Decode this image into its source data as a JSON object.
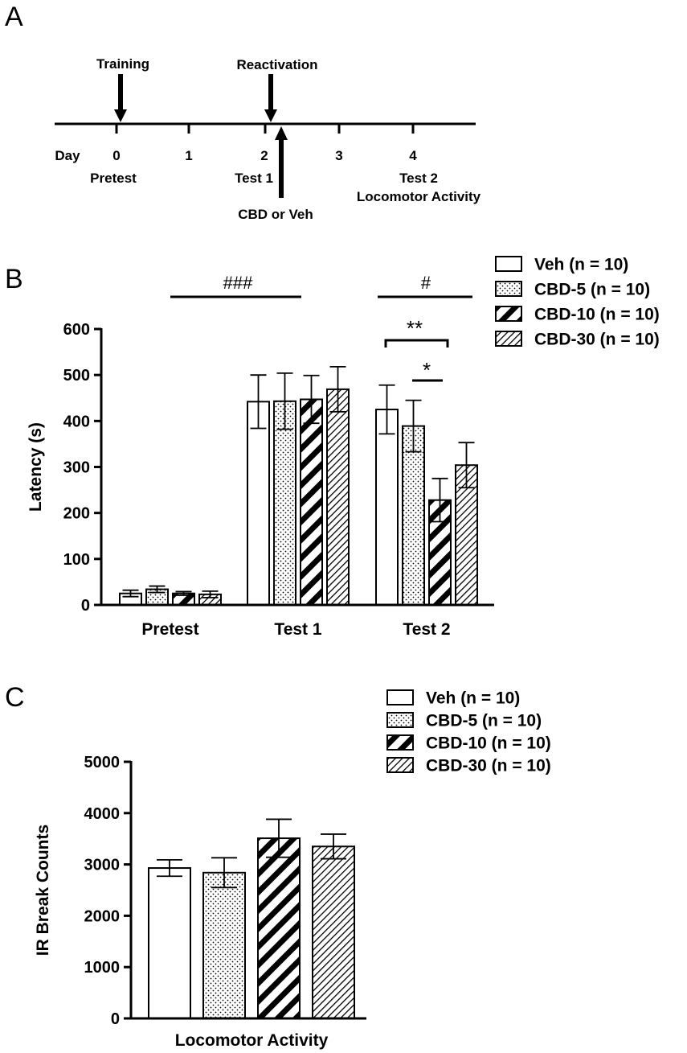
{
  "panels": {
    "a": "A",
    "b": "B",
    "c": "C"
  },
  "timeline": {
    "day_label": "Day",
    "days": [
      "0",
      "1",
      "2",
      "3",
      "4"
    ],
    "events_above": [
      "Training",
      "Reactivation"
    ],
    "labels_below": [
      "Pretest",
      "Test 1",
      "Test 2",
      "Locomotor Activity"
    ],
    "injection_label": "CBD or Veh"
  },
  "chart_data": [
    {
      "type": "bar",
      "panel": "B",
      "categories": [
        "Pretest",
        "Test 1",
        "Test 2"
      ],
      "series": [
        {
          "name": "Veh (n = 10)",
          "values": [
            25,
            442,
            425
          ],
          "errors": [
            7,
            58,
            53
          ]
        },
        {
          "name": "CBD-5 (n = 10)",
          "values": [
            34,
            443,
            389
          ],
          "errors": [
            7,
            61,
            56
          ]
        },
        {
          "name": "CBD-10 (n = 10)",
          "values": [
            25,
            447,
            228
          ],
          "errors": [
            4,
            52,
            47
          ]
        },
        {
          "name": "CBD-30 (n = 10)",
          "values": [
            23,
            469,
            304
          ],
          "errors": [
            7,
            49,
            49
          ]
        }
      ],
      "ylabel": "Latency (s)",
      "ylim": [
        0,
        600
      ],
      "yticks": [
        0,
        100,
        200,
        300,
        400,
        500,
        600
      ],
      "annotations": [
        "###",
        "#",
        "**",
        "*"
      ],
      "legend_position": "top-right"
    },
    {
      "type": "bar",
      "panel": "C",
      "categories": [
        "Locomotor Activity"
      ],
      "series": [
        {
          "name": "Veh (n = 10)",
          "values": [
            2930
          ],
          "errors": [
            160
          ]
        },
        {
          "name": "CBD-5 (n = 10)",
          "values": [
            2840
          ],
          "errors": [
            290
          ]
        },
        {
          "name": "CBD-10 (n = 10)",
          "values": [
            3510
          ],
          "errors": [
            370
          ]
        },
        {
          "name": "CBD-30 (n = 10)",
          "values": [
            3350
          ],
          "errors": [
            240
          ]
        }
      ],
      "ylabel": "IR Break Counts",
      "ylim": [
        0,
        5000
      ],
      "yticks": [
        0,
        1000,
        2000,
        3000,
        4000,
        5000
      ],
      "legend_position": "top-right"
    }
  ]
}
